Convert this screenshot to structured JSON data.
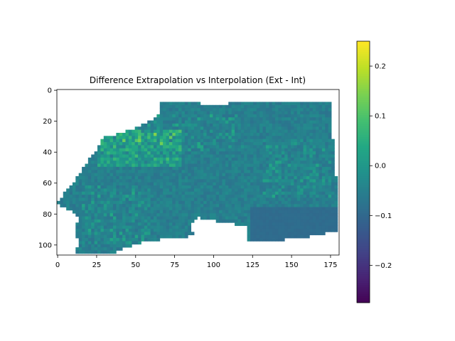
{
  "chart_data": {
    "type": "heatmap",
    "title": "Difference Extrapolation vs Interpolation (Ext - Int)",
    "xlabel": "",
    "ylabel": "",
    "xlim": [
      -0.5,
      180.5
    ],
    "ylim": [
      106.5,
      -0.5
    ],
    "xticks": [
      0,
      25,
      50,
      75,
      100,
      125,
      150,
      175
    ],
    "yticks": [
      0,
      20,
      40,
      60,
      80,
      100
    ],
    "colormap": "viridis",
    "colorbar": {
      "vmin": -0.275,
      "vmax": 0.25,
      "ticks": [
        -0.2,
        -0.1,
        0.0,
        0.1,
        0.2
      ],
      "tick_labels": [
        "−0.2",
        "−0.1",
        "0.0",
        "0.1",
        "0.2"
      ]
    },
    "nodata_color": "#ffffff",
    "dominant_value": -0.05,
    "value_range_observed": [
      -0.12,
      0.15
    ],
    "notes_visible": "masked (white) cells outside the irregular region"
  }
}
